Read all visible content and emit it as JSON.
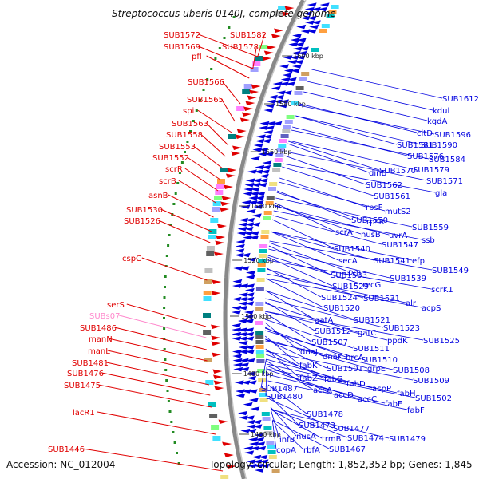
{
  "title": "Streptococcus uberis 0140J, complete genome",
  "footer": {
    "accession": "Accession: NC_012004",
    "topology": "Topology: circular; Length: 1,852,352 bp; Genes: 1,845"
  },
  "colors": {
    "forward": "#e00000",
    "reverse": "#0000e0",
    "pseudo": "#ff88cc",
    "ring": "#888888",
    "dots": "#228b22"
  },
  "kbp_ticks": [
    "1600 kbp",
    "1580 kbp",
    "1560 kbp",
    "1540 kbp",
    "1520 kbp",
    "1500 kbp",
    "1480 kbp",
    "1460 kbp"
  ],
  "left_labels": [
    {
      "text": "SUB1572",
      "kind": "forward"
    },
    {
      "text": "SUB1582",
      "kind": "forward"
    },
    {
      "text": "SUB1569",
      "kind": "forward"
    },
    {
      "text": "SUB1578",
      "kind": "forward"
    },
    {
      "text": "pfl",
      "kind": "forward"
    },
    {
      "text": "SUB1566",
      "kind": "forward"
    },
    {
      "text": "SUB1565",
      "kind": "forward"
    },
    {
      "text": "spi",
      "kind": "forward"
    },
    {
      "text": "SUB1563",
      "kind": "forward"
    },
    {
      "text": "SUB1558",
      "kind": "forward"
    },
    {
      "text": "SUB1553",
      "kind": "forward"
    },
    {
      "text": "SUB1552",
      "kind": "forward"
    },
    {
      "text": "scrR",
      "kind": "forward"
    },
    {
      "text": "scrB",
      "kind": "forward"
    },
    {
      "text": "asnB",
      "kind": "forward"
    },
    {
      "text": "SUB1530",
      "kind": "forward"
    },
    {
      "text": "SUB1526",
      "kind": "forward"
    },
    {
      "text": "cspC",
      "kind": "forward"
    },
    {
      "text": "serS",
      "kind": "forward"
    },
    {
      "text": "SUBs07",
      "kind": "pseudo"
    },
    {
      "text": "SUB1486",
      "kind": "forward"
    },
    {
      "text": "manN",
      "kind": "forward"
    },
    {
      "text": "manL",
      "kind": "forward"
    },
    {
      "text": "SUB1481",
      "kind": "forward"
    },
    {
      "text": "SUB1476",
      "kind": "forward"
    },
    {
      "text": "SUB1475",
      "kind": "forward"
    },
    {
      "text": "lacR1",
      "kind": "forward"
    },
    {
      "text": "SUB1446",
      "kind": "forward"
    }
  ],
  "right_labels": [
    {
      "text": "SUB1612"
    },
    {
      "text": "kdul"
    },
    {
      "text": "kgdA"
    },
    {
      "text": "SUB1596"
    },
    {
      "text": "citD"
    },
    {
      "text": "SUB1581"
    },
    {
      "text": "SUB1590"
    },
    {
      "text": "SUB1576"
    },
    {
      "text": "SUB1584"
    },
    {
      "text": "SUB1570"
    },
    {
      "text": "SUB1579"
    },
    {
      "text": "dinB"
    },
    {
      "text": "SUB1571"
    },
    {
      "text": "SUB1562"
    },
    {
      "text": "gla"
    },
    {
      "text": "SUB1561"
    },
    {
      "text": "rpsF"
    },
    {
      "text": "mutS2"
    },
    {
      "text": "SUB1550"
    },
    {
      "text": "rpsR"
    },
    {
      "text": "SUB1559"
    },
    {
      "text": "scrA"
    },
    {
      "text": "nusB"
    },
    {
      "text": "uvrA"
    },
    {
      "text": "ssb"
    },
    {
      "text": "SUB1547"
    },
    {
      "text": "SUB1540"
    },
    {
      "text": "SUB1541"
    },
    {
      "text": "efp"
    },
    {
      "text": "secA"
    },
    {
      "text": "SUB1549"
    },
    {
      "text": "pmi"
    },
    {
      "text": "SUB1533"
    },
    {
      "text": "SUB1539"
    },
    {
      "text": "scrK1"
    },
    {
      "text": "SUB1529"
    },
    {
      "text": "recG"
    },
    {
      "text": "SUB1524"
    },
    {
      "text": "SUB1531"
    },
    {
      "text": "alr"
    },
    {
      "text": "acpS"
    },
    {
      "text": "SUB1520"
    },
    {
      "text": "gatA"
    },
    {
      "text": "SUB1521"
    },
    {
      "text": "SUB1512"
    },
    {
      "text": "gatC"
    },
    {
      "text": "SUB1523"
    },
    {
      "text": "SUB1507"
    },
    {
      "text": "ppdK"
    },
    {
      "text": "SUB1525"
    },
    {
      "text": "SUB1511"
    },
    {
      "text": "dnaJ"
    },
    {
      "text": "dnaK"
    },
    {
      "text": "hrcA"
    },
    {
      "text": "SUB1510"
    },
    {
      "text": "fabK"
    },
    {
      "text": "SUB1501"
    },
    {
      "text": "grpE"
    },
    {
      "text": "SUB1508"
    },
    {
      "text": "fabZ"
    },
    {
      "text": "fabG"
    },
    {
      "text": "SUB1509"
    },
    {
      "text": "fabD"
    },
    {
      "text": "acpP"
    },
    {
      "text": "SUB1487"
    },
    {
      "text": "accA"
    },
    {
      "text": "fabH"
    },
    {
      "text": "SUB1502"
    },
    {
      "text": "accD"
    },
    {
      "text": "SUB1480"
    },
    {
      "text": "accC"
    },
    {
      "text": "fabE"
    },
    {
      "text": "fabF"
    },
    {
      "text": "SUB1478"
    },
    {
      "text": "SUB1477"
    },
    {
      "text": "SUB1473"
    },
    {
      "text": "nusA"
    },
    {
      "text": "trmB"
    },
    {
      "text": "SUB1474"
    },
    {
      "text": "SUB1479"
    },
    {
      "text": "infB"
    },
    {
      "text": "SUB1467"
    },
    {
      "text": "copA"
    },
    {
      "text": "rbfA"
    }
  ]
}
